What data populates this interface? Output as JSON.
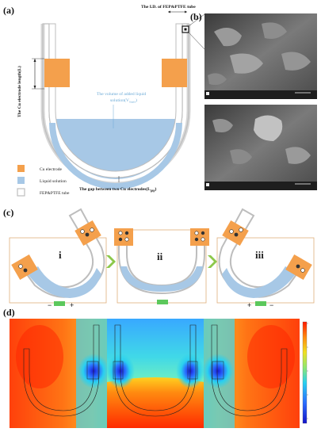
{
  "panel_a": {
    "label": "(a)",
    "top_label": "The I.D. of FEP&PTFE tube",
    "left_label": "The Cu electrode length(L)",
    "volume_label_line1": "The volume of added liquid",
    "volume_label_line2": "solution(V",
    "volume_label_sub": "liquid",
    "volume_label_end": ")",
    "legend": [
      "Cu electrode",
      "Liquid solution",
      "FEP&PTFE tube"
    ],
    "gap_label": "The gap between two Cu electrodes(L",
    "gap_label_sub": "gap",
    "gap_label_end": ")",
    "colors": {
      "electrode": "#f4a04c",
      "liquid": "#a7c8e6",
      "tube": "#c8c8c8"
    }
  },
  "panel_b": {
    "label": "(b)"
  },
  "panel_c": {
    "label": "(c)",
    "stages": [
      "i",
      "ii",
      "iii"
    ],
    "signs_left": [
      "−",
      "+"
    ],
    "signs_right": [
      "+",
      "−"
    ]
  },
  "panel_d": {
    "label": "(d)",
    "colors": {
      "low": "#1a1aff",
      "high": "#ff2000"
    }
  },
  "icons": [
    "cation-icon",
    "anion-icon",
    "arrow-chevron-icon",
    "meter-icon"
  ]
}
